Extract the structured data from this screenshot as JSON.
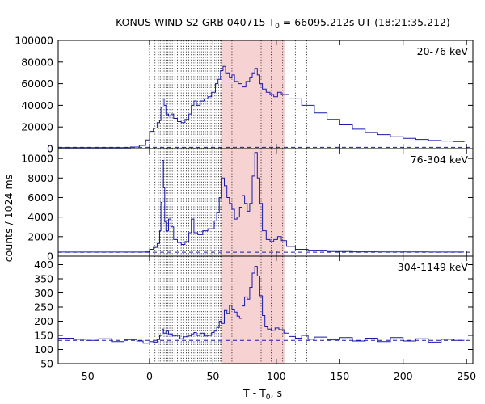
{
  "chart_data": {
    "type": "line",
    "title": "KONUS-WIND S2 GRB 040715 T",
    "title_sub": "0",
    "title_rest": " = 66095.212s UT (18:21:35.212)",
    "xlabel": "T - T",
    "xlabel_sub": "0",
    "xlabel_rest": ", s",
    "ylabel": "counts / 1024 ms",
    "xlim": [
      -72,
      255
    ],
    "x_ticks": [
      -50,
      0,
      50,
      100,
      150,
      200,
      250
    ],
    "x_tick_labels": [
      "-50",
      "0",
      "50",
      "100",
      "150",
      "200",
      "250"
    ],
    "colors": {
      "line": "#1a1aa8",
      "background_line": "#1a1aa8",
      "shade": "#f6d2d2",
      "grid_dotted": "#333333"
    },
    "dotted_markers": [
      0,
      4.3,
      7,
      8.5,
      10,
      11.5,
      13,
      14.5,
      16,
      18,
      20,
      22,
      25,
      27,
      29,
      31,
      33,
      35,
      36.5,
      38,
      39.5,
      41,
      42.5,
      44,
      45.5,
      47,
      48.5,
      50,
      51.5,
      53,
      54.5,
      56,
      57
    ],
    "sparse_markers": [
      65,
      73,
      80,
      88,
      96,
      105,
      115,
      124
    ],
    "shaded_interval": [
      57,
      107
    ],
    "panels": [
      {
        "label": "20-76 keV",
        "ylim": [
          0,
          100000
        ],
        "y_ticks": [
          0,
          20000,
          40000,
          60000,
          80000,
          100000
        ],
        "y_tick_labels": [
          "0",
          "20000",
          "40000",
          "60000",
          "80000",
          "100000"
        ],
        "background": 1200,
        "points": [
          [
            -72,
            900
          ],
          [
            -30,
            900
          ],
          [
            -15,
            1500
          ],
          [
            -8,
            3000
          ],
          [
            -3,
            8000
          ],
          [
            0,
            16000
          ],
          [
            3,
            19000
          ],
          [
            6,
            24000
          ],
          [
            8,
            26000
          ],
          [
            9,
            38000
          ],
          [
            10,
            46000
          ],
          [
            11.5,
            40000
          ],
          [
            13,
            32000
          ],
          [
            15,
            30000
          ],
          [
            17,
            32000
          ],
          [
            19,
            28000
          ],
          [
            22,
            25000
          ],
          [
            25,
            24000
          ],
          [
            28,
            27000
          ],
          [
            31,
            32000
          ],
          [
            33,
            40000
          ],
          [
            35,
            44000
          ],
          [
            37,
            40000
          ],
          [
            40,
            44000
          ],
          [
            43,
            46000
          ],
          [
            46,
            48000
          ],
          [
            49,
            52000
          ],
          [
            52,
            60000
          ],
          [
            54,
            64000
          ],
          [
            56,
            72000
          ],
          [
            58,
            76000
          ],
          [
            60,
            70000
          ],
          [
            63,
            66000
          ],
          [
            65,
            68000
          ],
          [
            67,
            62000
          ],
          [
            70,
            60000
          ],
          [
            73,
            57000
          ],
          [
            76,
            62000
          ],
          [
            79,
            66000
          ],
          [
            81,
            70000
          ],
          [
            83,
            74000
          ],
          [
            85,
            68000
          ],
          [
            87,
            60000
          ],
          [
            89,
            55000
          ],
          [
            92,
            52000
          ],
          [
            95,
            50000
          ],
          [
            98,
            48000
          ],
          [
            101,
            52000
          ],
          [
            104,
            50000
          ],
          [
            110,
            46000
          ],
          [
            120,
            40000
          ],
          [
            130,
            33000
          ],
          [
            140,
            27000
          ],
          [
            150,
            22000
          ],
          [
            160,
            18000
          ],
          [
            170,
            15000
          ],
          [
            180,
            13000
          ],
          [
            190,
            11000
          ],
          [
            200,
            9500
          ],
          [
            210,
            8500
          ],
          [
            220,
            7500
          ],
          [
            230,
            7000
          ],
          [
            240,
            6500
          ],
          [
            248,
            6000
          ]
        ]
      },
      {
        "label": "76-304 keV",
        "ylim": [
          0,
          11000
        ],
        "y_ticks": [
          0,
          2000,
          4000,
          6000,
          8000,
          10000
        ],
        "y_tick_labels": [
          "0",
          "2000",
          "4000",
          "6000",
          "8000",
          "10000"
        ],
        "background": 400,
        "points": [
          [
            -72,
            420
          ],
          [
            -10,
            420
          ],
          [
            -3,
            450
          ],
          [
            0,
            700
          ],
          [
            3,
            900
          ],
          [
            6,
            1300
          ],
          [
            8,
            2600
          ],
          [
            9,
            5500
          ],
          [
            10,
            9800
          ],
          [
            11,
            7000
          ],
          [
            12,
            3500
          ],
          [
            13,
            2600
          ],
          [
            15,
            3800
          ],
          [
            17,
            3000
          ],
          [
            19,
            1700
          ],
          [
            22,
            1400
          ],
          [
            25,
            1200
          ],
          [
            28,
            1500
          ],
          [
            31,
            2400
          ],
          [
            33,
            3800
          ],
          [
            35,
            2400
          ],
          [
            38,
            2200
          ],
          [
            42,
            2600
          ],
          [
            46,
            2800
          ],
          [
            49,
            2800
          ],
          [
            51,
            3600
          ],
          [
            53,
            4500
          ],
          [
            55,
            6000
          ],
          [
            57,
            8000
          ],
          [
            59,
            7200
          ],
          [
            61,
            6000
          ],
          [
            63,
            5400
          ],
          [
            65,
            4800
          ],
          [
            67,
            3800
          ],
          [
            69,
            4000
          ],
          [
            71,
            5000
          ],
          [
            73,
            6200
          ],
          [
            75,
            5400
          ],
          [
            77,
            4600
          ],
          [
            79,
            5400
          ],
          [
            81,
            8200
          ],
          [
            83,
            10600
          ],
          [
            85,
            8000
          ],
          [
            87,
            5400
          ],
          [
            89,
            2600
          ],
          [
            92,
            1700
          ],
          [
            95,
            1500
          ],
          [
            98,
            1700
          ],
          [
            101,
            2000
          ],
          [
            104,
            1600
          ],
          [
            108,
            1000
          ],
          [
            115,
            700
          ],
          [
            125,
            550
          ],
          [
            140,
            470
          ],
          [
            160,
            450
          ],
          [
            180,
            440
          ],
          [
            200,
            430
          ],
          [
            220,
            420
          ],
          [
            240,
            420
          ],
          [
            248,
            420
          ]
        ]
      },
      {
        "label": "304-1149 keV",
        "ylim": [
          50,
          430
        ],
        "y_ticks": [
          50,
          100,
          150,
          200,
          250,
          300,
          350,
          400
        ],
        "y_tick_labels": [
          "50",
          "100",
          "150",
          "200",
          "250",
          "300",
          "350",
          "400"
        ],
        "background": 132,
        "points": [
          [
            -72,
            140
          ],
          [
            -60,
            136
          ],
          [
            -50,
            132
          ],
          [
            -40,
            138
          ],
          [
            -30,
            128
          ],
          [
            -20,
            135
          ],
          [
            -10,
            130
          ],
          [
            -5,
            122
          ],
          [
            0,
            128
          ],
          [
            3,
            126
          ],
          [
            6,
            135
          ],
          [
            8,
            150
          ],
          [
            10,
            172
          ],
          [
            11,
            158
          ],
          [
            13,
            165
          ],
          [
            15,
            155
          ],
          [
            18,
            148
          ],
          [
            21,
            150
          ],
          [
            24,
            138
          ],
          [
            27,
            145
          ],
          [
            30,
            148
          ],
          [
            33,
            155
          ],
          [
            35,
            160
          ],
          [
            37,
            150
          ],
          [
            40,
            158
          ],
          [
            43,
            148
          ],
          [
            46,
            150
          ],
          [
            49,
            160
          ],
          [
            51,
            165
          ],
          [
            53,
            178
          ],
          [
            55,
            200
          ],
          [
            57,
            192
          ],
          [
            59,
            238
          ],
          [
            61,
            228
          ],
          [
            63,
            256
          ],
          [
            65,
            240
          ],
          [
            67,
            232
          ],
          [
            69,
            218
          ],
          [
            71,
            210
          ],
          [
            73,
            254
          ],
          [
            75,
            286
          ],
          [
            77,
            278
          ],
          [
            79,
            320
          ],
          [
            81,
            370
          ],
          [
            83,
            394
          ],
          [
            85,
            360
          ],
          [
            87,
            290
          ],
          [
            89,
            220
          ],
          [
            91,
            180
          ],
          [
            93,
            172
          ],
          [
            96,
            168
          ],
          [
            99,
            176
          ],
          [
            102,
            170
          ],
          [
            106,
            158
          ],
          [
            110,
            146
          ],
          [
            115,
            140
          ],
          [
            120,
            150
          ],
          [
            125,
            136
          ],
          [
            130,
            144
          ],
          [
            140,
            134
          ],
          [
            150,
            142
          ],
          [
            160,
            130
          ],
          [
            170,
            140
          ],
          [
            180,
            128
          ],
          [
            190,
            142
          ],
          [
            200,
            130
          ],
          [
            210,
            138
          ],
          [
            220,
            126
          ],
          [
            230,
            136
          ],
          [
            240,
            132
          ],
          [
            248,
            134
          ]
        ]
      }
    ]
  }
}
